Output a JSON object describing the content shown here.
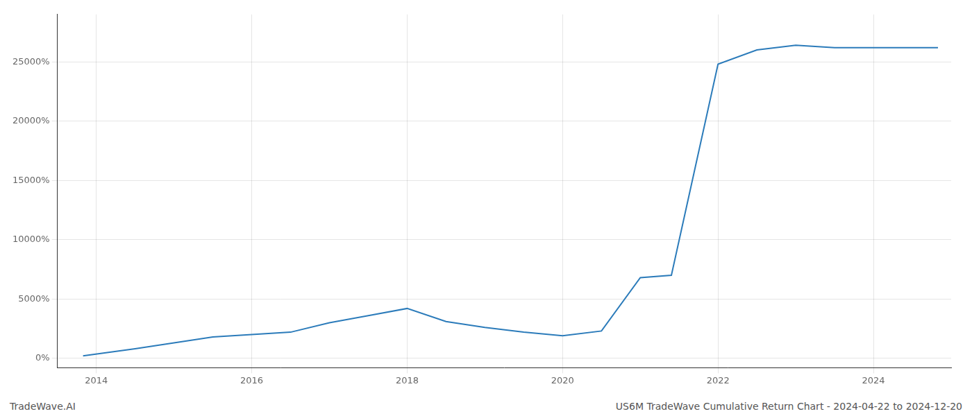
{
  "chart_data": {
    "type": "line",
    "title": "US6M TradeWave Cumulative Return Chart - 2024-04-22 to 2024-12-20",
    "annotations": [
      "TradeWave.AI"
    ],
    "x": [
      2013.83,
      2014.5,
      2015.0,
      2015.5,
      2016.5,
      2017.0,
      2017.5,
      2018.0,
      2018.5,
      2019.0,
      2019.5,
      2020.0,
      2020.5,
      2021.0,
      2021.4,
      2022.0,
      2022.5,
      2023.0,
      2023.5,
      2024.0,
      2024.4,
      2024.83
    ],
    "values": [
      200,
      800,
      1300,
      1800,
      2200,
      3000,
      3600,
      4200,
      3100,
      2600,
      2200,
      1900,
      2300,
      6800,
      7000,
      24800,
      26000,
      26400,
      26200,
      26200,
      26200,
      26200
    ],
    "color": "#2b7bba",
    "xlim": [
      2013.5,
      2025.0
    ],
    "ylim": [
      -800,
      29000
    ],
    "xticks": [
      2014,
      2016,
      2018,
      2020,
      2022,
      2024
    ],
    "yticks": [
      {
        "value": 0,
        "label": "0%"
      },
      {
        "value": 5000,
        "label": "5000%"
      },
      {
        "value": 10000,
        "label": "10000%"
      },
      {
        "value": 15000,
        "label": "15000%"
      },
      {
        "value": 20000,
        "label": "20000%"
      },
      {
        "value": 25000,
        "label": "25000%"
      }
    ],
    "grid": true
  }
}
